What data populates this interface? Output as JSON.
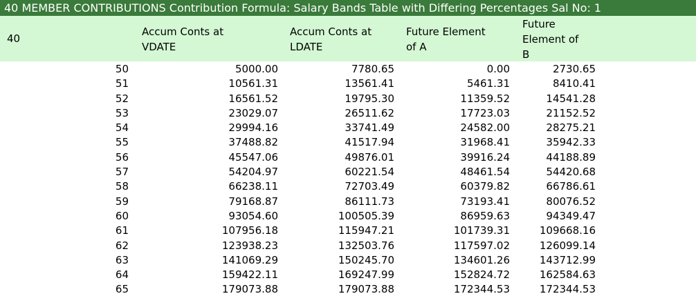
{
  "title": "40 MEMBER CONTRIBUTIONS Contribution Formula: Salary Bands Table with Differing Percentages Sal No: 1",
  "header": {
    "col0": "40",
    "col1_line1": "Accum Conts at",
    "col1_line2": "VDATE",
    "col2_line1": "Accum Conts at",
    "col2_line2": "LDATE",
    "col3_line1": "Future Element",
    "col3_line2": "of A",
    "col4_line1": "Future",
    "col4_line2": "Element of",
    "col4_line3": "B"
  },
  "rows": [
    {
      "age": "50",
      "vdate": "5000.00",
      "ldate": "7780.65",
      "a": "0.00",
      "b": "2730.65"
    },
    {
      "age": "51",
      "vdate": "10561.31",
      "ldate": "13561.41",
      "a": "5461.31",
      "b": "8410.41"
    },
    {
      "age": "52",
      "vdate": "16561.52",
      "ldate": "19795.30",
      "a": "11359.52",
      "b": "14541.28"
    },
    {
      "age": "53",
      "vdate": "23029.07",
      "ldate": "26511.62",
      "a": "17723.03",
      "b": "21152.52"
    },
    {
      "age": "54",
      "vdate": "29994.16",
      "ldate": "33741.49",
      "a": "24582.00",
      "b": "28275.21"
    },
    {
      "age": "55",
      "vdate": "37488.82",
      "ldate": "41517.94",
      "a": "31968.41",
      "b": "35942.33"
    },
    {
      "age": "56",
      "vdate": "45547.06",
      "ldate": "49876.01",
      "a": "39916.24",
      "b": "44188.89"
    },
    {
      "age": "57",
      "vdate": "54204.97",
      "ldate": "60221.54",
      "a": "48461.54",
      "b": "54420.68"
    },
    {
      "age": "58",
      "vdate": "66238.11",
      "ldate": "72703.49",
      "a": "60379.82",
      "b": "66786.61"
    },
    {
      "age": "59",
      "vdate": "79168.87",
      "ldate": "86111.73",
      "a": "73193.41",
      "b": "80076.52"
    },
    {
      "age": "60",
      "vdate": "93054.60",
      "ldate": "100505.39",
      "a": "86959.63",
      "b": "94349.47"
    },
    {
      "age": "61",
      "vdate": "107956.18",
      "ldate": "115947.21",
      "a": "101739.31",
      "b": "109668.16"
    },
    {
      "age": "62",
      "vdate": "123938.23",
      "ldate": "132503.76",
      "a": "117597.02",
      "b": "126099.14"
    },
    {
      "age": "63",
      "vdate": "141069.29",
      "ldate": "150245.70",
      "a": "134601.26",
      "b": "143712.99"
    },
    {
      "age": "64",
      "vdate": "159422.11",
      "ldate": "169247.99",
      "a": "152824.72",
      "b": "162584.63"
    },
    {
      "age": "65",
      "vdate": "179073.88",
      "ldate": "179073.88",
      "a": "172344.53",
      "b": "172344.53"
    }
  ],
  "colors": {
    "title_bg": "#3a7a3a",
    "title_fg": "#ffffff",
    "header_bg": "#d4f8d4"
  }
}
